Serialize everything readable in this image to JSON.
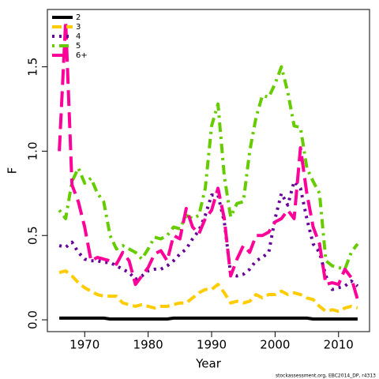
{
  "chart_data": {
    "type": "line",
    "x_label": "Year",
    "y_label": "F",
    "note": "stockassessment.org, EBC2014_DP, r4313",
    "legend": "top-left",
    "x": [
      1966,
      1967,
      1968,
      1969,
      1970,
      1971,
      1972,
      1973,
      1974,
      1975,
      1976,
      1977,
      1978,
      1979,
      1980,
      1981,
      1982,
      1983,
      1984,
      1985,
      1986,
      1987,
      1988,
      1989,
      1990,
      1991,
      1992,
      1993,
      1994,
      1995,
      1996,
      1997,
      1998,
      1999,
      2000,
      2001,
      2002,
      2003,
      2004,
      2005,
      2006,
      2007,
      2008,
      2009,
      2010,
      2011,
      2012,
      2013
    ],
    "xlim": [
      1964.12,
      2014.88
    ],
    "xticks": [
      1970,
      1980,
      1990,
      2000,
      2010
    ],
    "ylim": [
      -0.07,
      1.84
    ],
    "yticks": [
      {
        "value": 0,
        "label": "0.0"
      },
      0.5,
      {
        "value": 1,
        "label": "1.0"
      },
      1.5
    ],
    "series": [
      {
        "name": "2",
        "color": "#000000",
        "dash": "solid",
        "values": [
          0.01,
          0.01,
          0.01,
          0.01,
          0.01,
          0.01,
          0.01,
          0.01,
          0.005,
          0.005,
          0.005,
          0.005,
          0.005,
          0.005,
          0.005,
          0.005,
          0.005,
          0.005,
          0.01,
          0.01,
          0.01,
          0.01,
          0.01,
          0.01,
          0.01,
          0.01,
          0.01,
          0.01,
          0.01,
          0.01,
          0.01,
          0.01,
          0.01,
          0.01,
          0.01,
          0.01,
          0.01,
          0.01,
          0.01,
          0.01,
          0.005,
          0.005,
          0.005,
          0.005,
          0.005,
          0.005,
          0.005,
          0.005
        ]
      },
      {
        "name": "3",
        "color": "#ffcc00",
        "dash": "dashed",
        "values": [
          0.28,
          0.29,
          0.26,
          0.22,
          0.19,
          0.17,
          0.15,
          0.14,
          0.14,
          0.14,
          0.1,
          0.09,
          0.08,
          0.09,
          0.08,
          0.07,
          0.08,
          0.08,
          0.09,
          0.1,
          0.1,
          0.13,
          0.16,
          0.18,
          0.18,
          0.21,
          0.16,
          0.1,
          0.11,
          0.1,
          0.11,
          0.15,
          0.13,
          0.15,
          0.15,
          0.17,
          0.15,
          0.16,
          0.15,
          0.13,
          0.12,
          0.08,
          0.05,
          0.06,
          0.05,
          0.07,
          0.08,
          0.07
        ]
      },
      {
        "name": "4",
        "color": "#660099",
        "dash": "dotted",
        "values": [
          0.44,
          0.43,
          0.46,
          0.4,
          0.36,
          0.35,
          0.35,
          0.34,
          0.34,
          0.32,
          0.3,
          0.28,
          0.24,
          0.26,
          0.29,
          0.3,
          0.3,
          0.32,
          0.35,
          0.39,
          0.42,
          0.48,
          0.53,
          0.62,
          0.74,
          0.74,
          0.58,
          0.27,
          0.26,
          0.27,
          0.3,
          0.35,
          0.37,
          0.4,
          0.6,
          0.75,
          0.68,
          0.82,
          0.78,
          0.6,
          0.45,
          0.4,
          0.26,
          0.18,
          0.19,
          0.2,
          0.23,
          0.2
        ]
      },
      {
        "name": "5",
        "color": "#66cc00",
        "dash": "dotdash",
        "values": [
          0.65,
          0.6,
          0.82,
          0.9,
          0.81,
          0.84,
          0.75,
          0.7,
          0.5,
          0.42,
          0.44,
          0.42,
          0.4,
          0.36,
          0.42,
          0.49,
          0.48,
          0.5,
          0.55,
          0.54,
          0.62,
          0.6,
          0.62,
          0.78,
          1.15,
          1.28,
          0.85,
          0.61,
          0.69,
          0.7,
          1.0,
          1.2,
          1.33,
          1.32,
          1.4,
          1.5,
          1.35,
          1.15,
          1.14,
          0.9,
          0.82,
          0.75,
          0.35,
          0.32,
          0.31,
          0.3,
          0.4,
          0.45
        ]
      },
      {
        "name": "6+",
        "color": "#ff0099",
        "dash": "longdash",
        "values": [
          1.0,
          1.77,
          0.8,
          0.7,
          0.55,
          0.35,
          0.37,
          0.36,
          0.35,
          0.33,
          0.4,
          0.35,
          0.21,
          0.26,
          0.31,
          0.39,
          0.41,
          0.35,
          0.5,
          0.48,
          0.66,
          0.55,
          0.51,
          0.6,
          0.65,
          0.78,
          0.6,
          0.26,
          0.36,
          0.44,
          0.4,
          0.5,
          0.5,
          0.52,
          0.58,
          0.6,
          0.65,
          0.6,
          1.02,
          0.75,
          0.55,
          0.45,
          0.21,
          0.22,
          0.21,
          0.3,
          0.25,
          0.12
        ]
      }
    ]
  }
}
